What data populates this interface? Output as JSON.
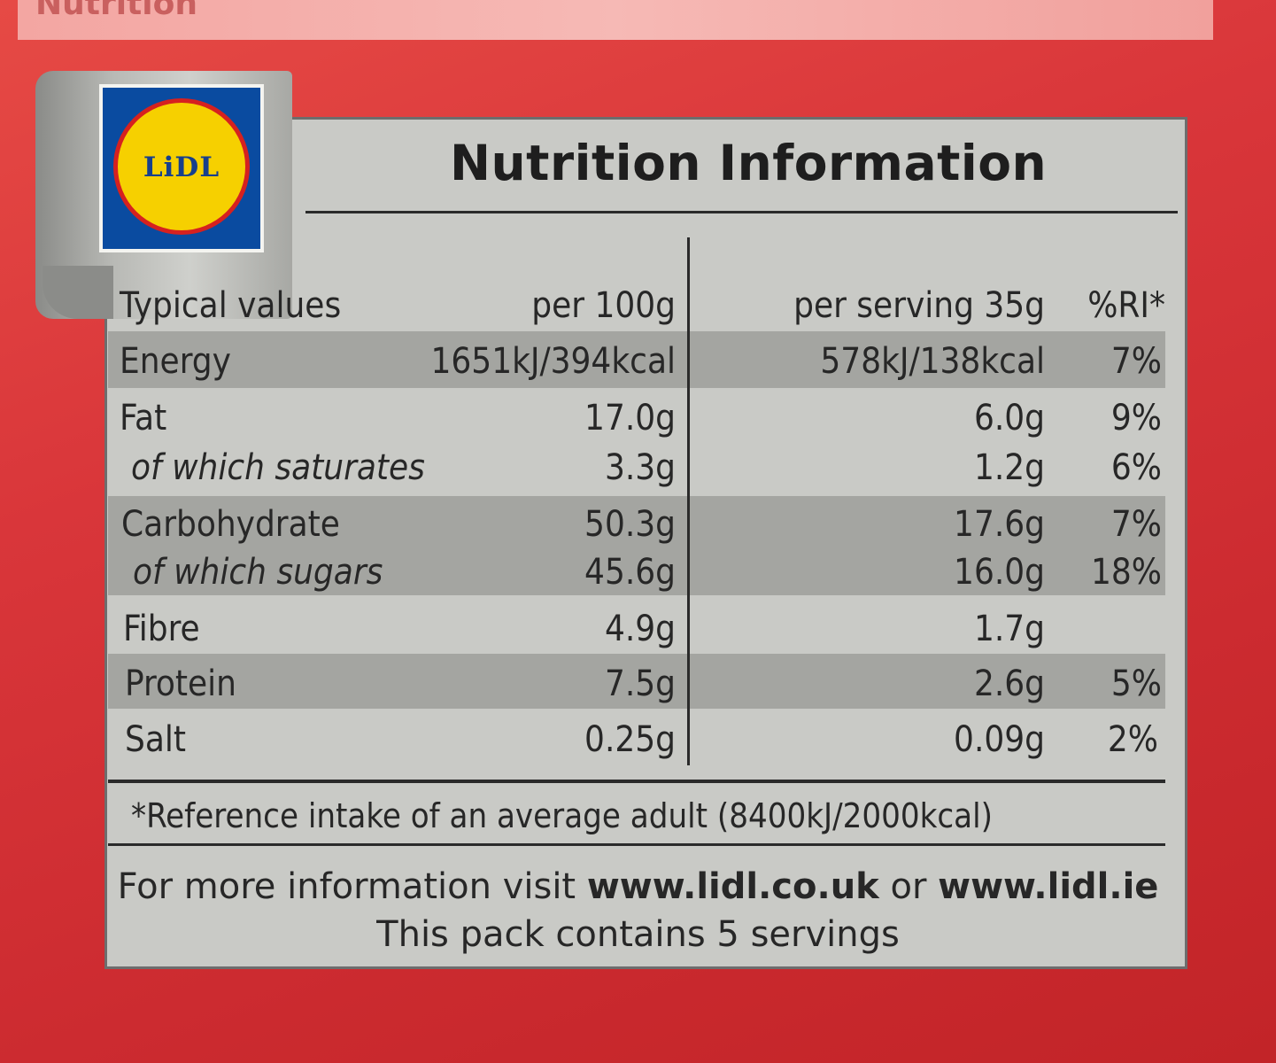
{
  "top_label": "Nutrition",
  "logo_text": "LiDL",
  "title": "Nutrition Information",
  "headers": {
    "typical": "Typical values",
    "per100": "per 100g",
    "perserving": "per serving 35g",
    "ri": "%RI*"
  },
  "rows": [
    {
      "label": "Energy",
      "per100": "1651kJ/394kcal",
      "perserving": "578kJ/138kcal",
      "ri": "7%"
    },
    {
      "label": "Fat",
      "per100": "17.0g",
      "perserving": "6.0g",
      "ri": "9%"
    },
    {
      "label": "of which saturates",
      "per100": "3.3g",
      "perserving": "1.2g",
      "ri": "6%"
    },
    {
      "label": "Carbohydrate",
      "per100": "50.3g",
      "perserving": "17.6g",
      "ri": "7%"
    },
    {
      "label": "of which sugars",
      "per100": "45.6g",
      "perserving": "16.0g",
      "ri": "18%"
    },
    {
      "label": "Fibre",
      "per100": "4.9g",
      "perserving": "1.7g",
      "ri": ""
    },
    {
      "label": "Protein",
      "per100": "7.5g",
      "perserving": "2.6g",
      "ri": "5%"
    },
    {
      "label": "Salt",
      "per100": "0.25g",
      "perserving": "0.09g",
      "ri": "2%"
    }
  ],
  "reference_note": "*Reference intake of an average adult (8400kJ/2000kcal)",
  "more_info_prefix": "For more information visit ",
  "url_uk": "www.lidl.co.uk",
  "more_info_or": " or ",
  "url_ie": "www.lidl.ie",
  "servings_note": "This pack contains 5 servings",
  "colors": {
    "box_bg": "#c9cac6",
    "row_shade": "#a4a5a1",
    "package_red": "#d9363a"
  }
}
